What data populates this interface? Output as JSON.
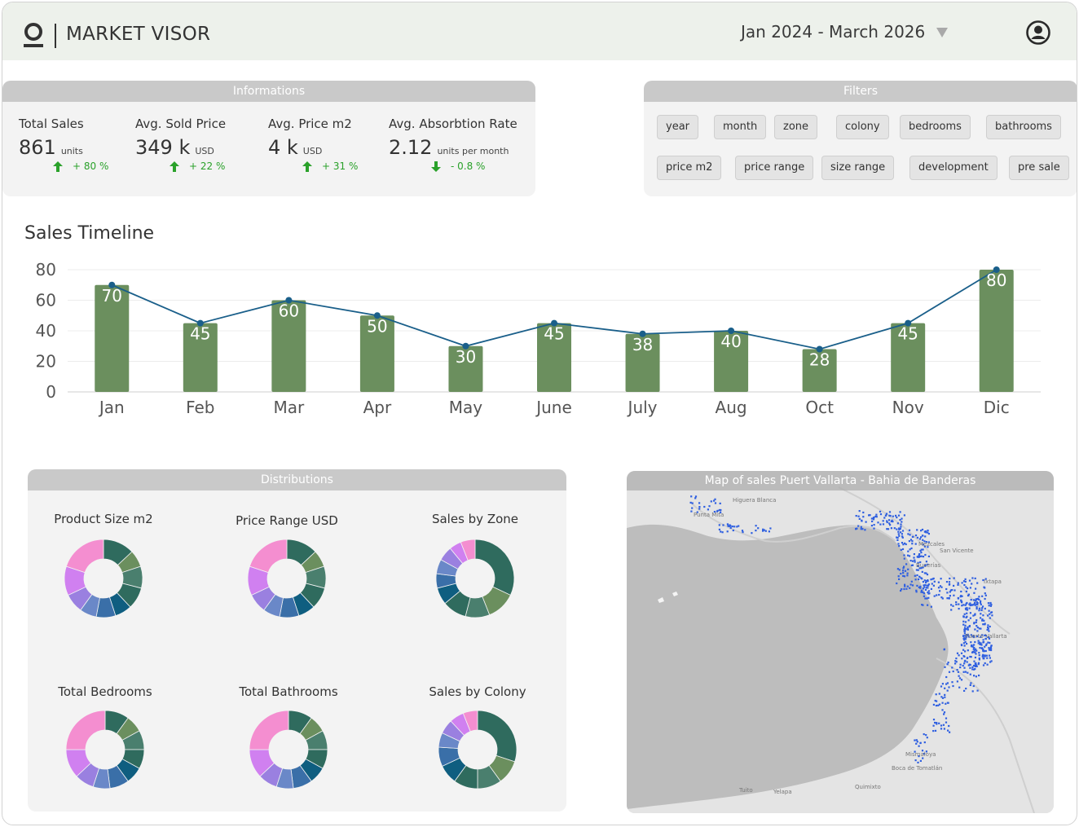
{
  "header": {
    "brand": "MARKET VISOR",
    "date_range": "Jan 2024 - March 2026"
  },
  "informations": {
    "title": "Informations",
    "kpis": [
      {
        "title": "Total Sales",
        "value": "861",
        "unit": "units",
        "change": "+ 80 %",
        "direction": "up"
      },
      {
        "title": "Avg. Sold Price",
        "value": "349 k",
        "unit": "USD",
        "change": "+ 22 %",
        "direction": "up"
      },
      {
        "title": "Avg. Price m2",
        "value": "4 k",
        "unit": "USD",
        "change": "+ 31 %",
        "direction": "up"
      },
      {
        "title": "Avg. Absorbtion Rate",
        "value": "2.12",
        "unit": "units per month",
        "change": "- 0.8 %",
        "direction": "down"
      }
    ]
  },
  "filters": {
    "title": "Filters",
    "chips": [
      "year",
      "month",
      "zone",
      "colony",
      "bedrooms",
      "bathrooms",
      "price m2",
      "price range",
      "size range",
      "development",
      "pre sale"
    ]
  },
  "chart_data": {
    "type": "bar",
    "title": "Sales Timeline",
    "categories": [
      "Jan",
      "Feb",
      "Mar",
      "Apr",
      "May",
      "June",
      "July",
      "Aug",
      "Oct",
      "Nov",
      "Dic"
    ],
    "values": [
      70,
      45,
      60,
      50,
      30,
      45,
      38,
      40,
      28,
      45,
      80
    ],
    "line_overlay": true,
    "ylim": [
      0,
      80
    ],
    "yticks": [
      0,
      20,
      40,
      60,
      80
    ],
    "grid": true,
    "bar_color": "#6b8f5e",
    "line_color": "#1a5f8a"
  },
  "distributions": {
    "title": "Distributions",
    "charts": [
      {
        "title": "Product Size m2",
        "colors": [
          "#2f6b5e",
          "#6b8f5e",
          "#4a7f6e",
          "#2f6b5e",
          "#0f5e80",
          "#3a6fa8",
          "#6a88c8",
          "#9a80e0",
          "#d080f0",
          "#f48ed0"
        ],
        "values": [
          13,
          7,
          9,
          9,
          7,
          8,
          7,
          8,
          12,
          20
        ]
      },
      {
        "title": "Price Range USD",
        "colors": [
          "#2f6b5e",
          "#6b8f5e",
          "#4a7f6e",
          "#2f6b5e",
          "#0f5e80",
          "#3a6fa8",
          "#6a88c8",
          "#9a80e0",
          "#d080f0",
          "#f48ed0"
        ],
        "values": [
          13,
          7,
          9,
          9,
          7,
          8,
          7,
          8,
          12,
          20
        ]
      },
      {
        "title": "Sales by Zone",
        "colors": [
          "#2f6b5e",
          "#6b8f5e",
          "#4a7f6e",
          "#2f6b5e",
          "#0f5e80",
          "#3a6fa8",
          "#6a88c8",
          "#9a80e0",
          "#d080f0",
          "#f48ed0"
        ],
        "values": [
          32,
          12,
          10,
          10,
          7,
          6,
          6,
          6,
          5,
          6
        ]
      },
      {
        "title": "Total Bedrooms",
        "colors": [
          "#2f6b5e",
          "#6b8f5e",
          "#4a7f6e",
          "#2f6b5e",
          "#0f5e80",
          "#3a6fa8",
          "#6a88c8",
          "#9a80e0",
          "#d080f0",
          "#f48ed0"
        ],
        "values": [
          10,
          7,
          8,
          8,
          7,
          8,
          7,
          8,
          12,
          25
        ]
      },
      {
        "title": "Total Bathrooms",
        "colors": [
          "#2f6b5e",
          "#6b8f5e",
          "#4a7f6e",
          "#2f6b5e",
          "#0f5e80",
          "#3a6fa8",
          "#6a88c8",
          "#9a80e0",
          "#d080f0",
          "#f48ed0"
        ],
        "values": [
          10,
          7,
          8,
          8,
          7,
          8,
          7,
          8,
          12,
          25
        ]
      },
      {
        "title": "Sales by Colony",
        "colors": [
          "#2f6b5e",
          "#6b8f5e",
          "#4a7f6e",
          "#2f6b5e",
          "#0f5e80",
          "#3a6fa8",
          "#6a88c8",
          "#9a80e0",
          "#d080f0",
          "#f48ed0"
        ],
        "values": [
          30,
          10,
          10,
          10,
          8,
          8,
          6,
          6,
          6,
          6
        ]
      }
    ]
  },
  "map": {
    "title": "Map of sales Puert Vallarta - Bahia de Banderas",
    "labels": [
      "Higuera Blanca",
      "Punta Mita",
      "Bucerías",
      "Mezcales",
      "San Vicente",
      "Puerto Vallarta",
      "Ixtapa",
      "Mismaloya",
      "Boca de Tomatlán",
      "Quimixto",
      "Yelapa",
      "Tuito"
    ]
  },
  "colors": {
    "accent": "#6b8f5e",
    "header_bg": "#edf1eb",
    "panel_bg": "#f3f3f3",
    "panel_head": "#c9c9c9",
    "up": "#2aa12a",
    "down": "#2aa12a",
    "map_dots": "#2f5fe0"
  }
}
